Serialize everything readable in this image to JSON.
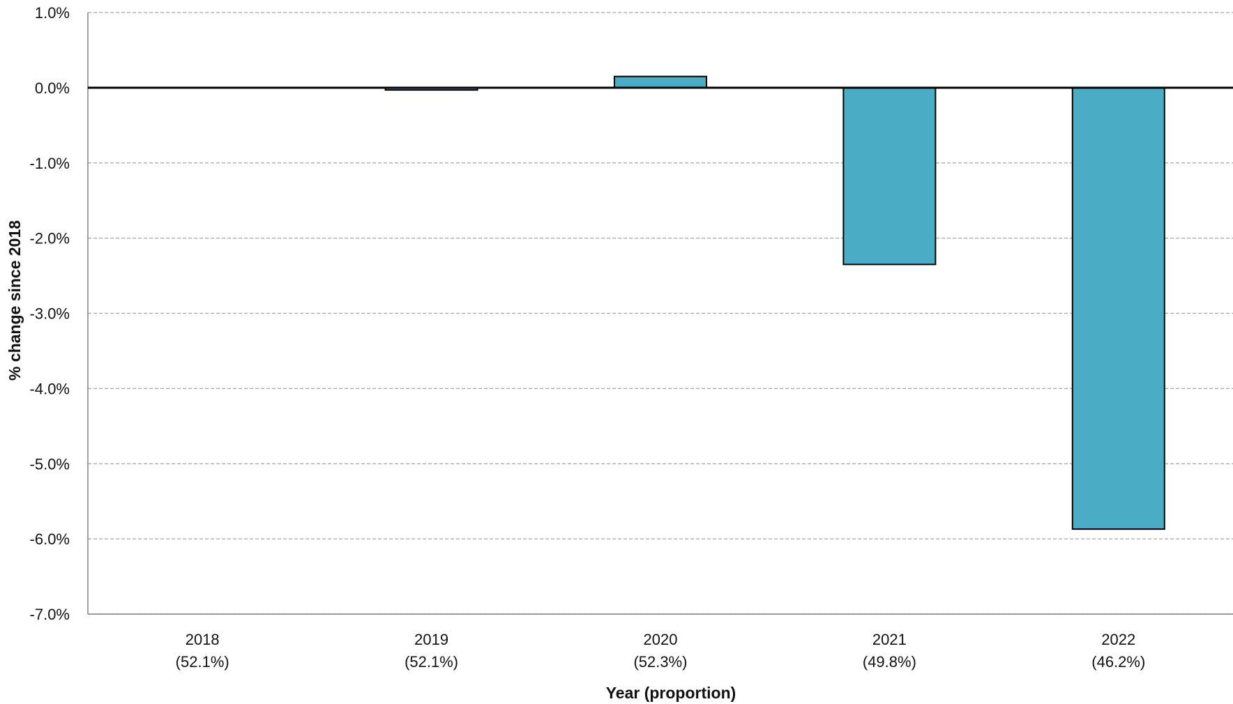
{
  "chart_data": {
    "type": "bar",
    "title": "",
    "xlabel": "Year (proportion)",
    "ylabel": "% change since 2018",
    "categories": [
      "2018",
      "2019",
      "2020",
      "2021",
      "2022"
    ],
    "category_sublabels": [
      "(52.1%)",
      "(52.1%)",
      "(52.3%)",
      "(49.8%)",
      "(46.2%)"
    ],
    "values": [
      0.0,
      -0.03,
      0.15,
      -2.35,
      -5.87
    ],
    "ylim": [
      -7.0,
      1.0
    ],
    "yticks": [
      1.0,
      0.0,
      -1.0,
      -2.0,
      -3.0,
      -4.0,
      -5.0,
      -6.0,
      -7.0
    ],
    "ytick_labels": [
      "1.0%",
      "0.0%",
      "-1.0%",
      "-2.0%",
      "-3.0%",
      "-4.0%",
      "-5.0%",
      "-6.0%",
      "-7.0%"
    ],
    "grid": true,
    "legend": "none",
    "bar_color": "#4bacc6",
    "zero_line_color": "#000000"
  }
}
